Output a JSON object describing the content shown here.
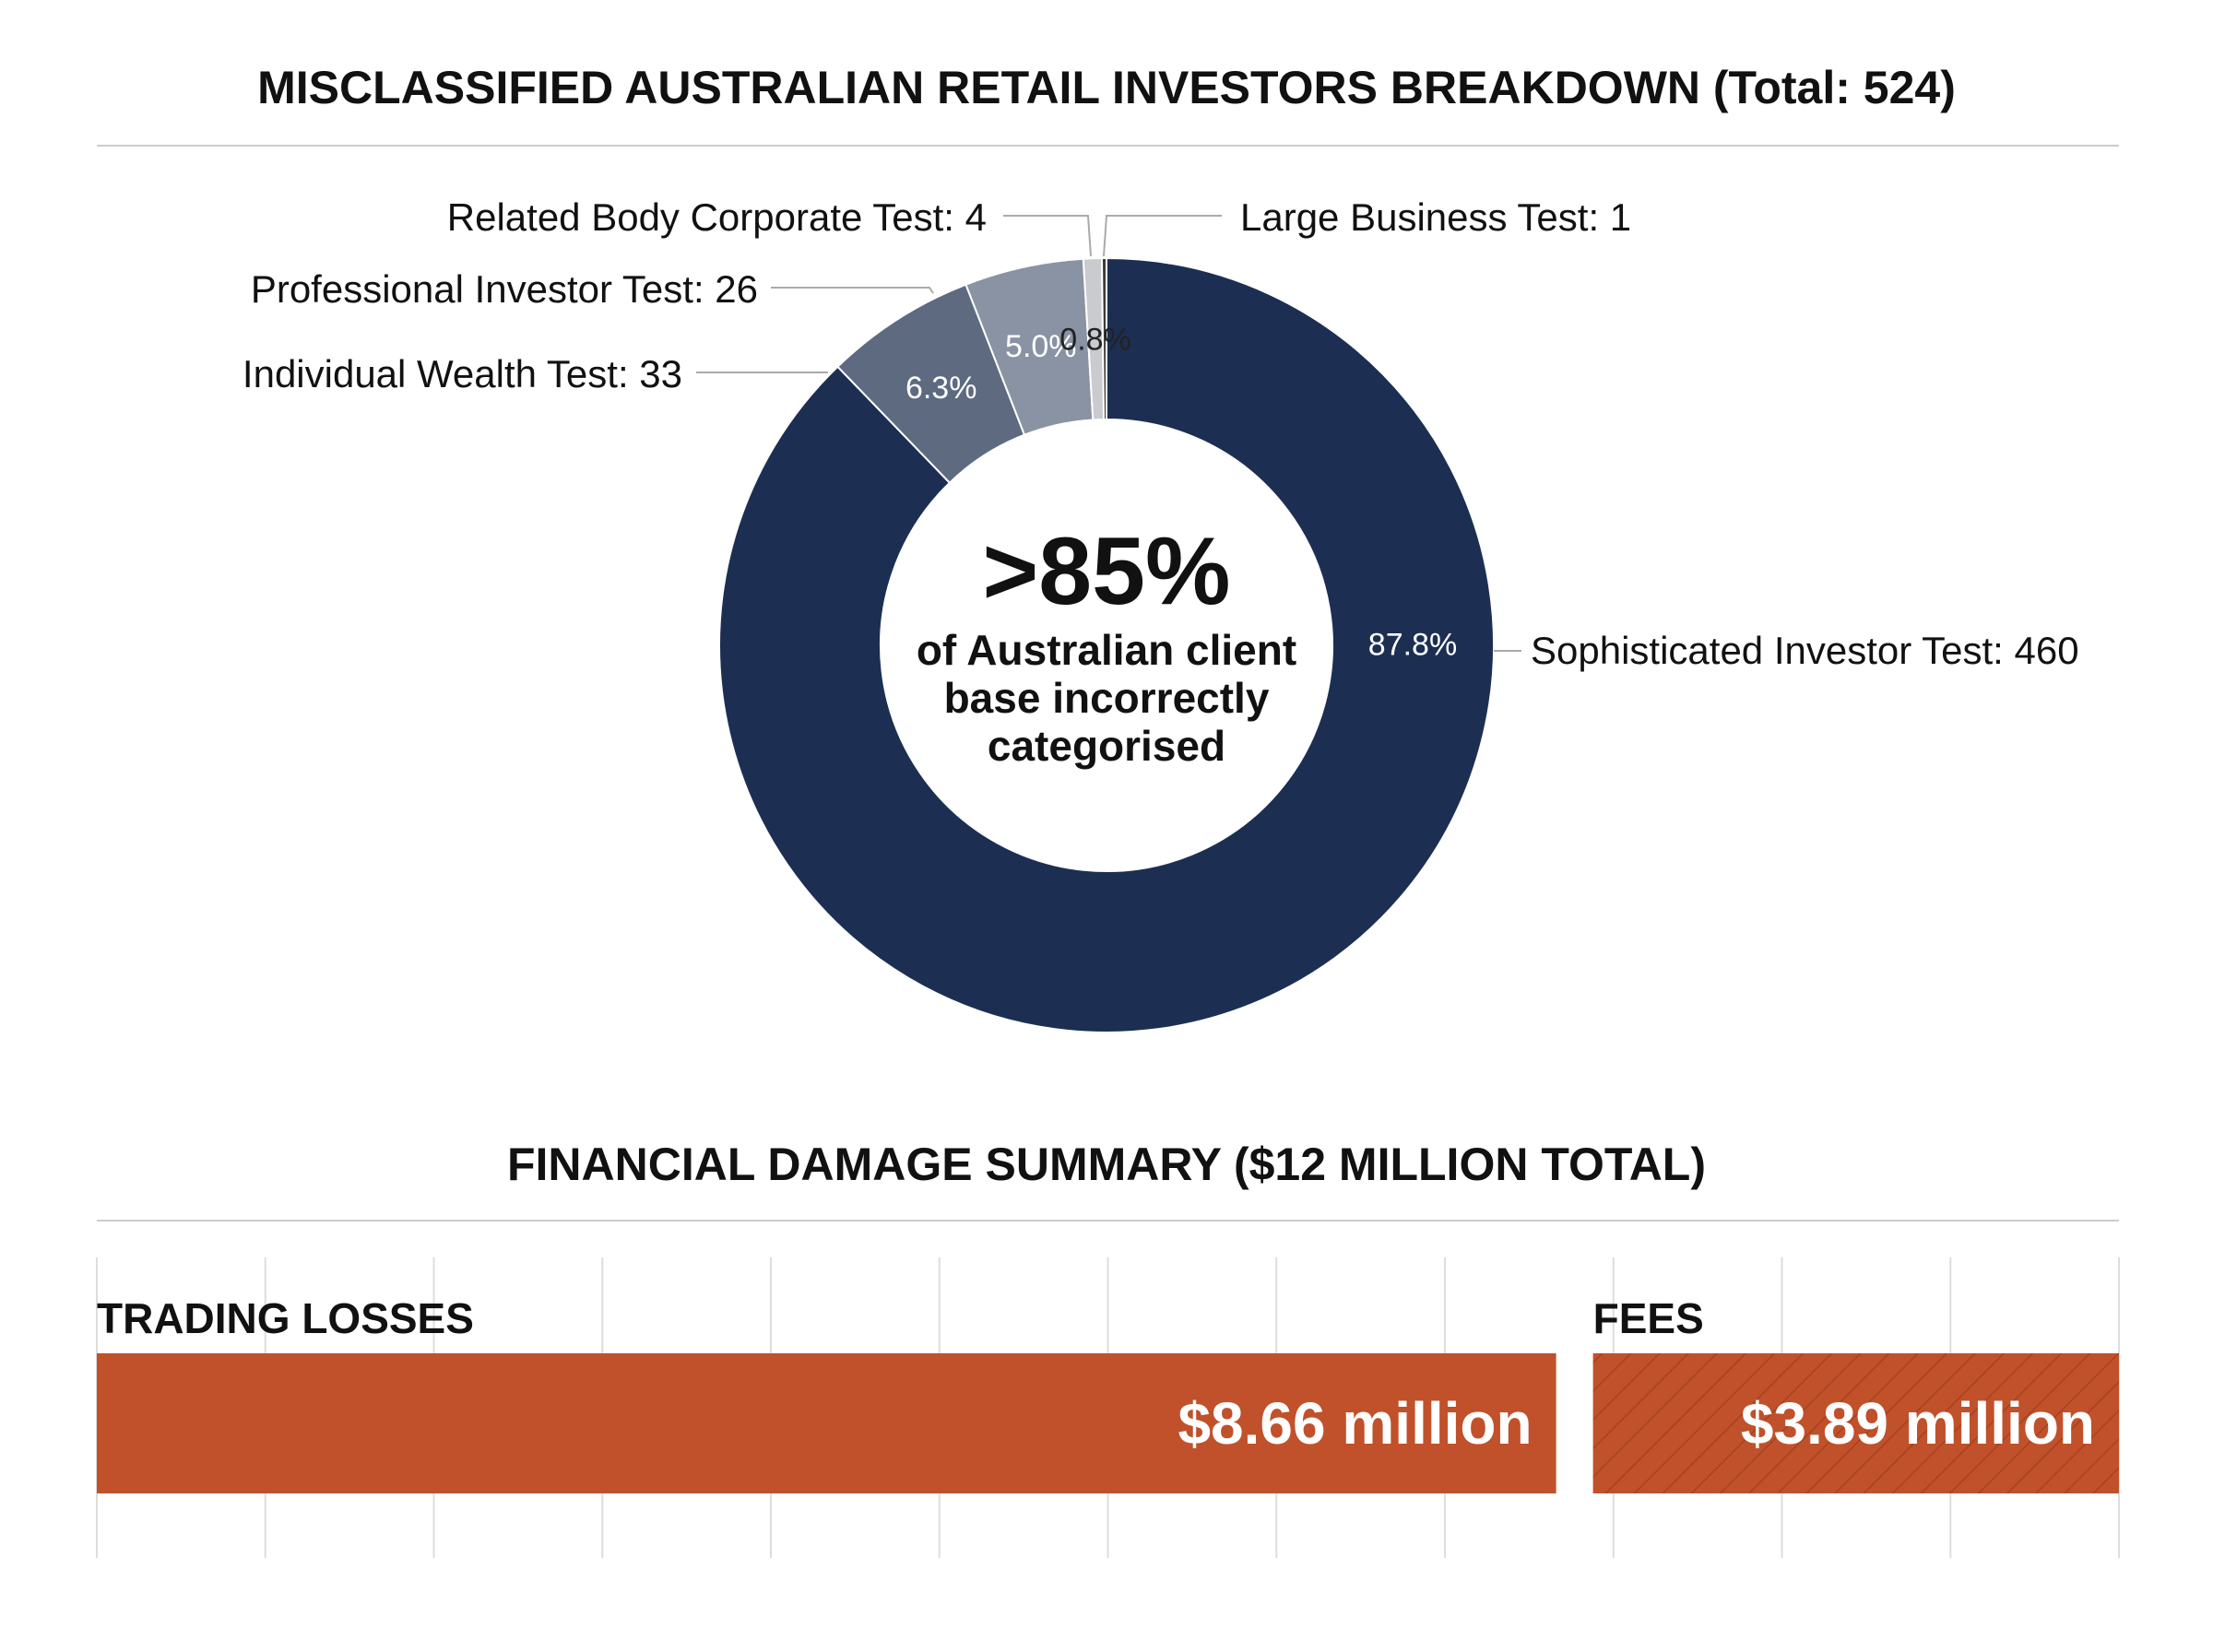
{
  "chart_data": [
    {
      "type": "pie",
      "title": "MISCLASSIFIED AUSTRALIAN RETAIL INVESTORS BREAKDOWN (Total: 524)",
      "center": {
        "headline": ">85%",
        "lines": [
          "of Australian client",
          "base incorrectly",
          "categorised"
        ]
      },
      "slices": [
        {
          "label": "Sophisticated Investor Test: 460",
          "value": 460,
          "pct_label": "87.8%",
          "color": "#1c2f52"
        },
        {
          "label": "Individual Wealth Test: 33",
          "value": 33,
          "pct_label": "6.3%",
          "color": "#5d6a80"
        },
        {
          "label": "Professional Investor Test: 26",
          "value": 26,
          "pct_label": "5.0%",
          "color": "#8a93a3"
        },
        {
          "label": "Related Body Corporate Test: 4",
          "value": 4,
          "pct_label": "0.8%",
          "color": "#c9cbcf"
        },
        {
          "label": "Large Business Test: 1",
          "value": 1,
          "pct_label": "",
          "color": "#3a3a3a"
        }
      ],
      "slice_order_clockwise_from_top": [
        "Sophisticated Investor Test: 460",
        "Individual Wealth Test: 33",
        "Professional Investor Test: 26",
        "Related Body Corporate Test: 4",
        "Large Business Test: 1"
      ]
    },
    {
      "type": "bar",
      "title": "FINANCIAL DAMAGE SUMMARY ($12 MILLION TOTAL)",
      "orientation": "horizontal",
      "categories": [
        "TRADING LOSSES",
        "FEES"
      ],
      "values": [
        8.66,
        3.89
      ],
      "value_labels": [
        "$8.66 million",
        "$3.89 million"
      ],
      "unit": "million",
      "total": 12,
      "colors": [
        "#c0512b",
        "#c0512b"
      ],
      "fees_pattern": "hatched",
      "grid": true
    }
  ]
}
